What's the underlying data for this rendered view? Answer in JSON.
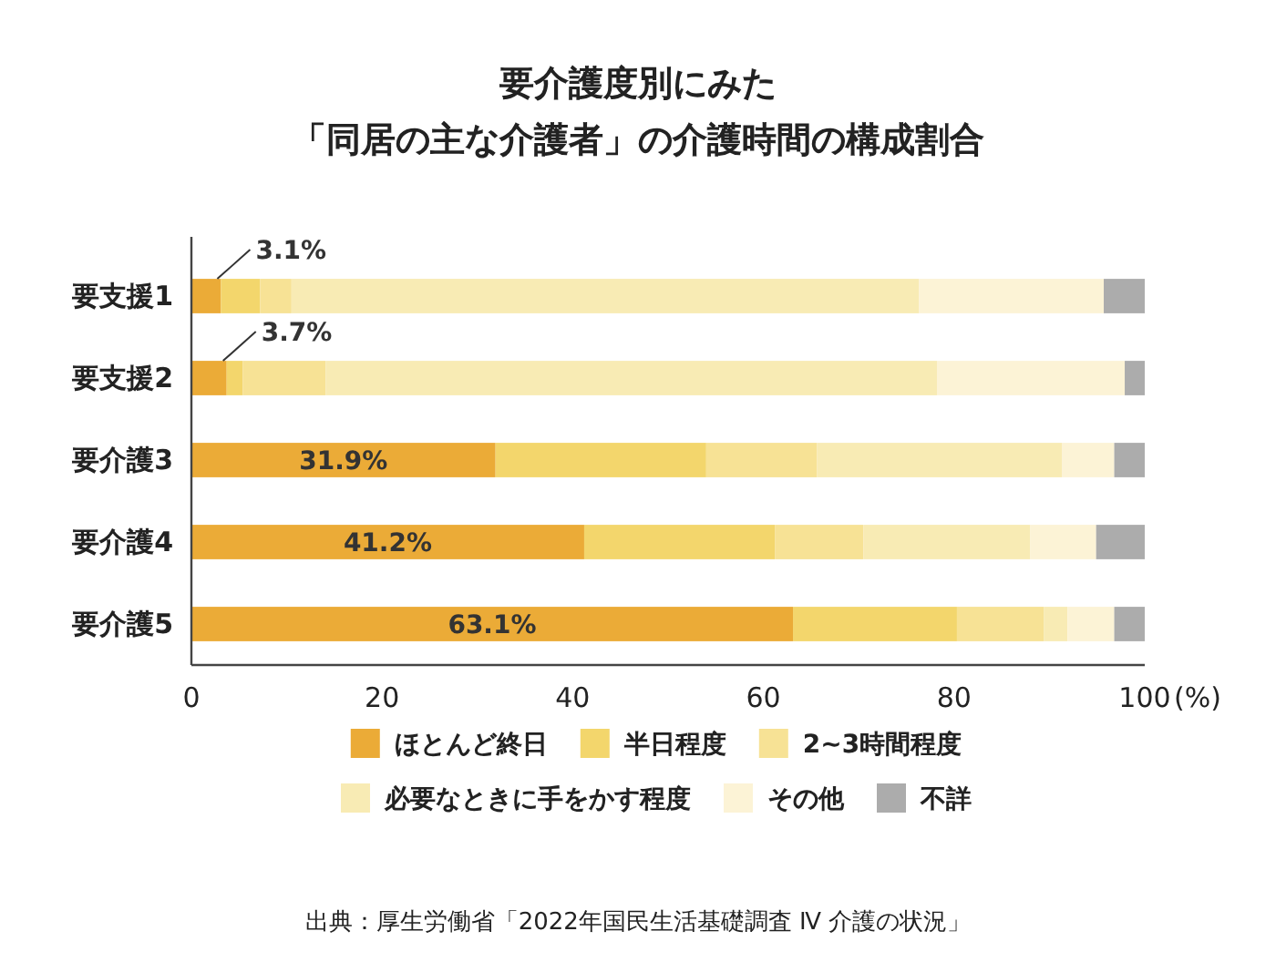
{
  "chart_data": {
    "type": "bar",
    "orientation": "horizontal",
    "stacked": true,
    "title": "要介護度別にみた",
    "subtitle": "「同居の主な介護者」の介護時間の構成割合",
    "categories": [
      "要支援1",
      "要支援2",
      "要介護3",
      "要介護4",
      "要介護5"
    ],
    "series": [
      {
        "name": "ほとんど終日",
        "color": "#ebab37",
        "values": [
          3.1,
          3.7,
          31.9,
          41.2,
          63.1
        ],
        "value_labels": [
          "3.1%",
          "3.7%",
          "31.9%",
          "41.2%",
          "63.1%"
        ]
      },
      {
        "name": "半日程度",
        "color": "#f3d66c",
        "values": [
          4.1,
          1.7,
          22.1,
          20.0,
          17.2
        ]
      },
      {
        "name": "2~3時間程度",
        "color": "#f7e295",
        "values": [
          3.3,
          8.7,
          11.6,
          9.3,
          9.1
        ]
      },
      {
        "name": "必要なときに手をかす程度",
        "color": "#f8ebb4",
        "values": [
          65.8,
          64.1,
          25.7,
          17.5,
          2.5
        ]
      },
      {
        "name": "その他",
        "color": "#fcf3d6",
        "values": [
          19.4,
          19.7,
          5.5,
          6.9,
          4.9
        ]
      },
      {
        "name": "不詳",
        "color": "#acacac",
        "values": [
          4.3,
          2.1,
          3.2,
          5.1,
          3.2
        ]
      }
    ],
    "xlim": [
      0,
      100
    ],
    "xticks": [
      0,
      20,
      40,
      60,
      80,
      100
    ],
    "xlabel": "(%)",
    "grid": false,
    "legend": "bottom",
    "annotations": [
      "出典：厚生労働省「2022年国民生活基礎調査 Ⅳ 介護の状況」"
    ]
  }
}
